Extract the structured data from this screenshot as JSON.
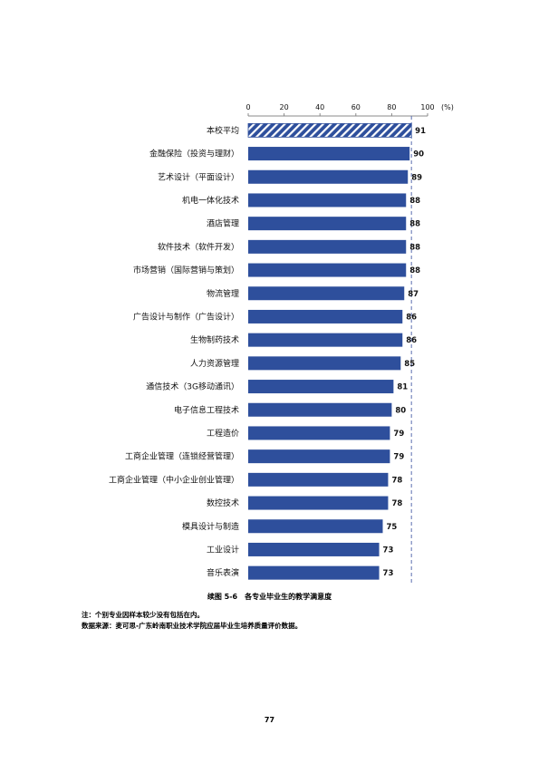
{
  "chart_data": {
    "type": "bar",
    "orientation": "horizontal",
    "unit_label": "(%)",
    "xlim": [
      0,
      100
    ],
    "xticks": [
      0,
      20,
      40,
      60,
      80,
      100
    ],
    "reference_value": 91,
    "categories": [
      "本校平均",
      "金融保险（投资与理财）",
      "艺术设计（平面设计）",
      "机电一体化技术",
      "酒店管理",
      "软件技术（软件开发）",
      "市场营销（国际营销与策划）",
      "物流管理",
      "广告设计与制作（广告设计）",
      "生物制药技术",
      "人力资源管理",
      "通信技术（3G移动通讯）",
      "电子信息工程技术",
      "工程造价",
      "工商企业管理（连锁经营管理）",
      "工商企业管理（中小企业创业管理）",
      "数控技术",
      "模具设计与制造",
      "工业设计",
      "音乐表演"
    ],
    "values": [
      91,
      90,
      89,
      88,
      88,
      88,
      88,
      87,
      86,
      86,
      85,
      81,
      80,
      79,
      79,
      78,
      78,
      75,
      73,
      73
    ],
    "colors": {
      "bar": "#2e4f9c",
      "average_bar": "#2e4f9c",
      "reference_line": "#5b6fb0"
    }
  },
  "caption": "续图 5-6　各专业毕业生的教学满意度",
  "note": "注：个别专业因样本较少没有包括在内。",
  "source": "数据来源：麦可思-广东岭南职业技术学院应届毕业生培养质量评价数据。",
  "page_number": "77"
}
